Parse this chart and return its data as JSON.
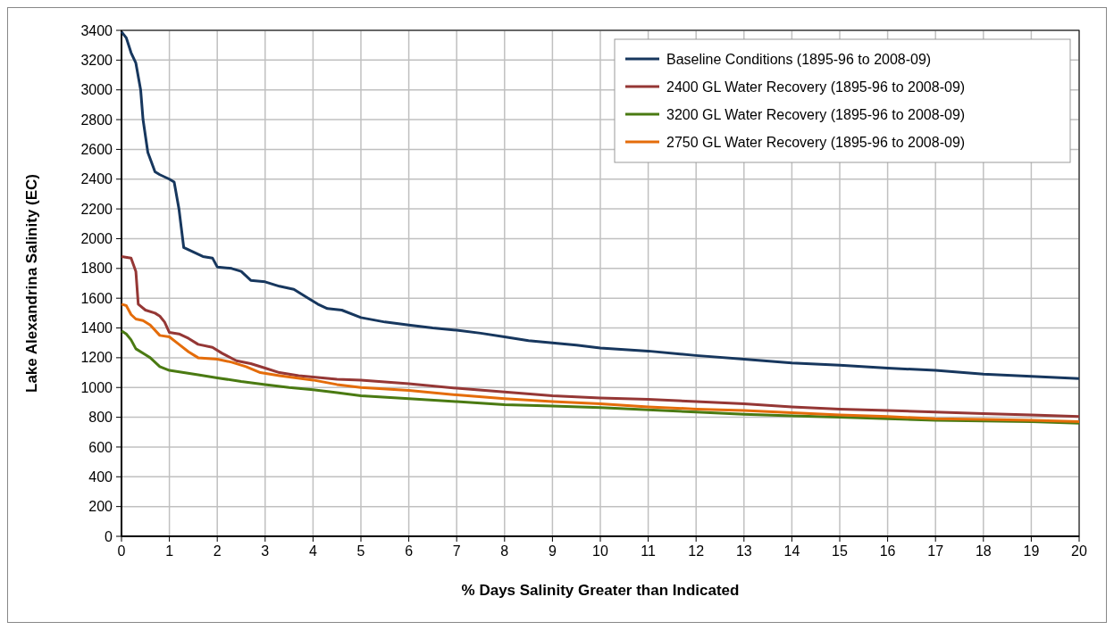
{
  "chart_data": {
    "type": "line",
    "xlabel": "% Days Salinity  Greater than Indicated",
    "ylabel": "Lake Alexandrina Salinity (EC)",
    "xlim": [
      0,
      20
    ],
    "xticks": [
      0,
      1,
      2,
      3,
      4,
      5,
      6,
      7,
      8,
      9,
      10,
      11,
      12,
      13,
      14,
      15,
      16,
      17,
      18,
      19,
      20
    ],
    "ylim": [
      0,
      3400
    ],
    "yticks": [
      0,
      200,
      400,
      600,
      800,
      1000,
      1200,
      1400,
      1600,
      1800,
      2000,
      2200,
      2400,
      2600,
      2800,
      3000,
      3200,
      3400
    ],
    "grid": true,
    "legend": "top right",
    "line_style": "solid",
    "series": [
      {
        "name": "Baseline Conditions (1895-96 to 2008-09)",
        "color": "#17375e",
        "x": [
          0,
          0.1,
          0.2,
          0.3,
          0.4,
          0.45,
          0.55,
          0.7,
          0.8,
          1.0,
          1.1,
          1.2,
          1.3,
          1.5,
          1.7,
          1.9,
          2.0,
          2.3,
          2.5,
          2.7,
          3.0,
          3.3,
          3.6,
          3.9,
          4.1,
          4.3,
          4.6,
          5.0,
          5.5,
          6,
          6.5,
          7,
          7.5,
          8,
          8.5,
          9,
          9.5,
          10,
          11,
          12,
          13,
          14,
          15,
          16,
          17,
          18,
          19,
          20
        ],
        "values": [
          3390,
          3350,
          3250,
          3180,
          3000,
          2800,
          2580,
          2450,
          2430,
          2400,
          2380,
          2200,
          1940,
          1910,
          1880,
          1870,
          1810,
          1800,
          1780,
          1720,
          1710,
          1680,
          1660,
          1600,
          1560,
          1530,
          1520,
          1470,
          1440,
          1420,
          1400,
          1385,
          1365,
          1340,
          1315,
          1300,
          1285,
          1265,
          1245,
          1215,
          1190,
          1165,
          1150,
          1130,
          1115,
          1090,
          1075,
          1060
        ]
      },
      {
        "name": "2400 GL Water Recovery (1895-96 to 2008-09)",
        "color": "#953735",
        "x": [
          0,
          0.2,
          0.3,
          0.35,
          0.5,
          0.7,
          0.8,
          0.9,
          1.0,
          1.2,
          1.4,
          1.6,
          1.9,
          2.1,
          2.4,
          2.7,
          3.0,
          3.3,
          3.7,
          4,
          4.5,
          5,
          6,
          7,
          8,
          9,
          10,
          11,
          12,
          13,
          14,
          15,
          16,
          17,
          18,
          19,
          20
        ],
        "values": [
          1880,
          1870,
          1780,
          1560,
          1520,
          1500,
          1480,
          1440,
          1370,
          1360,
          1330,
          1290,
          1270,
          1230,
          1180,
          1160,
          1130,
          1100,
          1080,
          1070,
          1055,
          1050,
          1025,
          995,
          970,
          945,
          930,
          920,
          905,
          890,
          870,
          855,
          845,
          835,
          825,
          815,
          805
        ]
      },
      {
        "name": "3200 GL Water Recovery (1895-96 to 2008-09)",
        "color": "#4a7a12",
        "x": [
          0,
          0.1,
          0.2,
          0.3,
          0.5,
          0.6,
          0.8,
          1.0,
          1.3,
          1.6,
          2,
          2.5,
          3,
          3.5,
          4,
          4.5,
          5,
          6,
          7,
          8,
          9,
          10,
          11,
          12,
          13,
          14,
          15,
          16,
          17,
          18,
          19,
          20
        ],
        "values": [
          1380,
          1360,
          1320,
          1260,
          1220,
          1200,
          1140,
          1115,
          1100,
          1085,
          1065,
          1040,
          1020,
          1000,
          985,
          965,
          945,
          925,
          905,
          885,
          875,
          865,
          850,
          835,
          820,
          810,
          800,
          790,
          780,
          775,
          770,
          760
        ]
      },
      {
        "name": "2750 GL Water Recovery (1895-96 to 2008-09)",
        "color": "#e46c0a",
        "x": [
          0,
          0.1,
          0.2,
          0.3,
          0.45,
          0.6,
          0.8,
          1.0,
          1.2,
          1.4,
          1.6,
          2,
          2.3,
          2.6,
          2.9,
          3.3,
          4,
          4.5,
          5,
          6,
          7,
          8,
          9,
          10,
          11,
          12,
          13,
          14,
          15,
          16,
          17,
          18,
          19,
          20
        ],
        "values": [
          1560,
          1550,
          1490,
          1460,
          1450,
          1420,
          1350,
          1340,
          1290,
          1240,
          1200,
          1190,
          1170,
          1140,
          1100,
          1080,
          1050,
          1020,
          1000,
          980,
          950,
          925,
          905,
          890,
          870,
          855,
          845,
          830,
          815,
          805,
          790,
          785,
          780,
          770
        ]
      }
    ]
  }
}
